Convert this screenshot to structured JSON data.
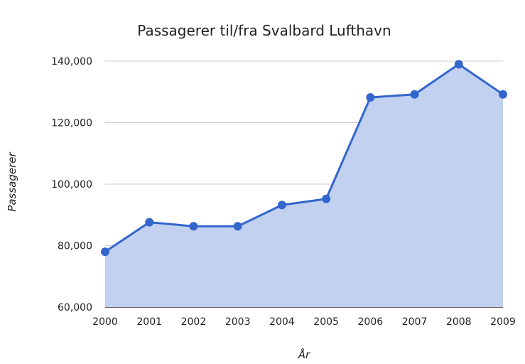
{
  "chart_data": {
    "type": "area",
    "title": "Passagerer til/fra Svalbard Lufthavn",
    "xlabel": "År",
    "ylabel": "Passagerer",
    "categories": [
      "2000",
      "2001",
      "2002",
      "2003",
      "2004",
      "2005",
      "2006",
      "2007",
      "2008",
      "2009"
    ],
    "series": [
      {
        "values": [
          78000,
          87600,
          86300,
          86300,
          93200,
          95200,
          128200,
          129200,
          139000,
          129200
        ]
      }
    ],
    "ylim": [
      60000,
      140000
    ],
    "yticks": [
      60000,
      80000,
      100000,
      120000,
      140000
    ],
    "ytick_labels": [
      "60,000",
      "80,000",
      "100,000",
      "120,000",
      "140,000"
    ],
    "grid": true,
    "legend": "none",
    "colors": {
      "line": "#3366cc",
      "fill": "#c2d1f0",
      "grid": "#cccccc",
      "baseline": "#333333"
    }
  }
}
